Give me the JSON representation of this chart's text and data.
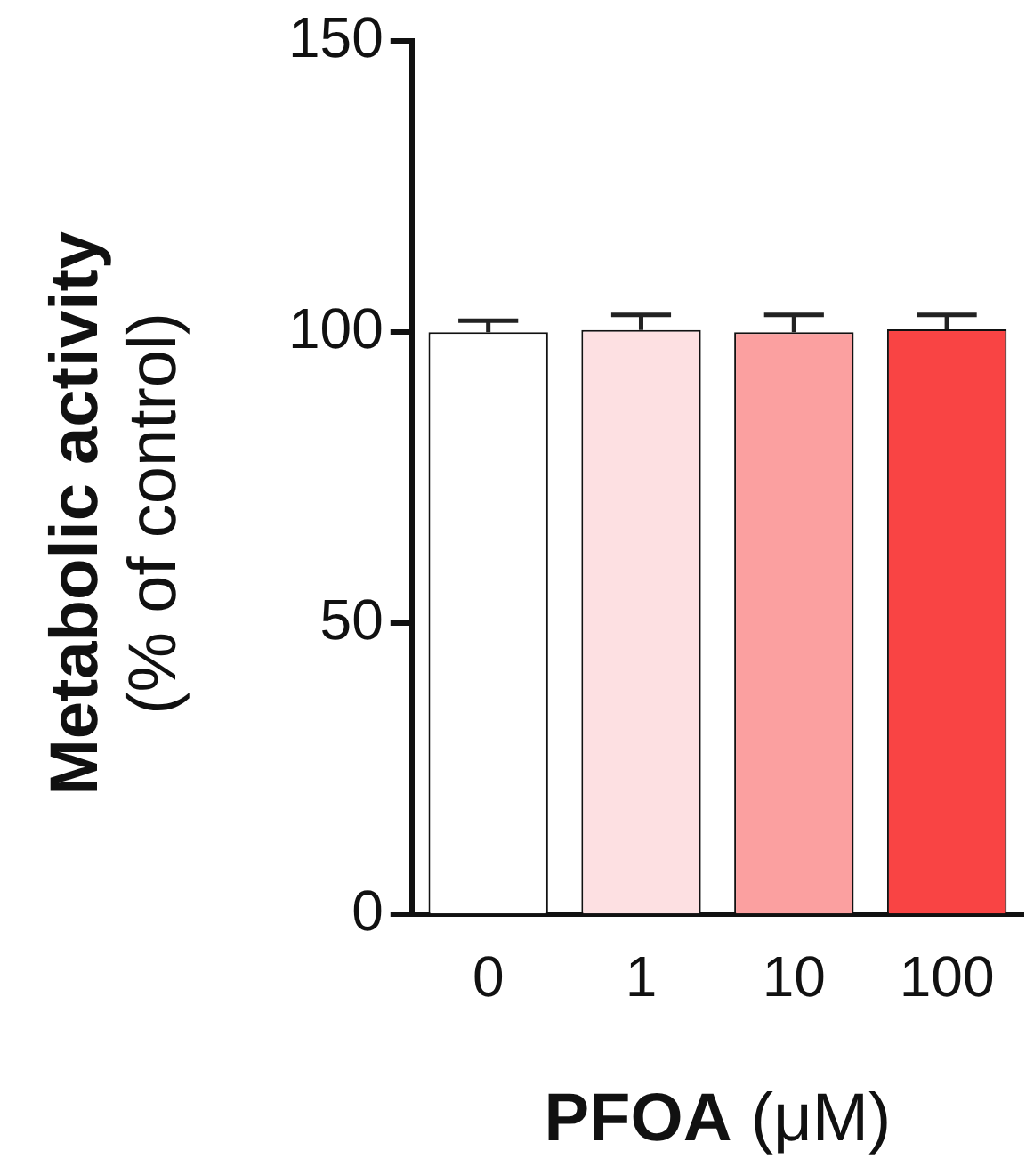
{
  "chart_data": {
    "type": "bar",
    "categories": [
      "0",
      "1",
      "10",
      "100"
    ],
    "values": [
      100,
      100.4,
      100,
      100.5
    ],
    "colors": [
      "#ffffff",
      "#fde0e2",
      "#fba0a0",
      "#f94444"
    ],
    "errors": [
      [
        100,
        102
      ],
      [
        100.4,
        103
      ],
      [
        100,
        103
      ],
      [
        100.5,
        103
      ]
    ],
    "ylim": [
      0,
      150
    ],
    "yticks": [
      0,
      50,
      100,
      150
    ],
    "xlabel": "PFOA (μM)",
    "ylabel": "Metabolic activity\n(% of control)",
    "grid": false,
    "legend": false
  }
}
